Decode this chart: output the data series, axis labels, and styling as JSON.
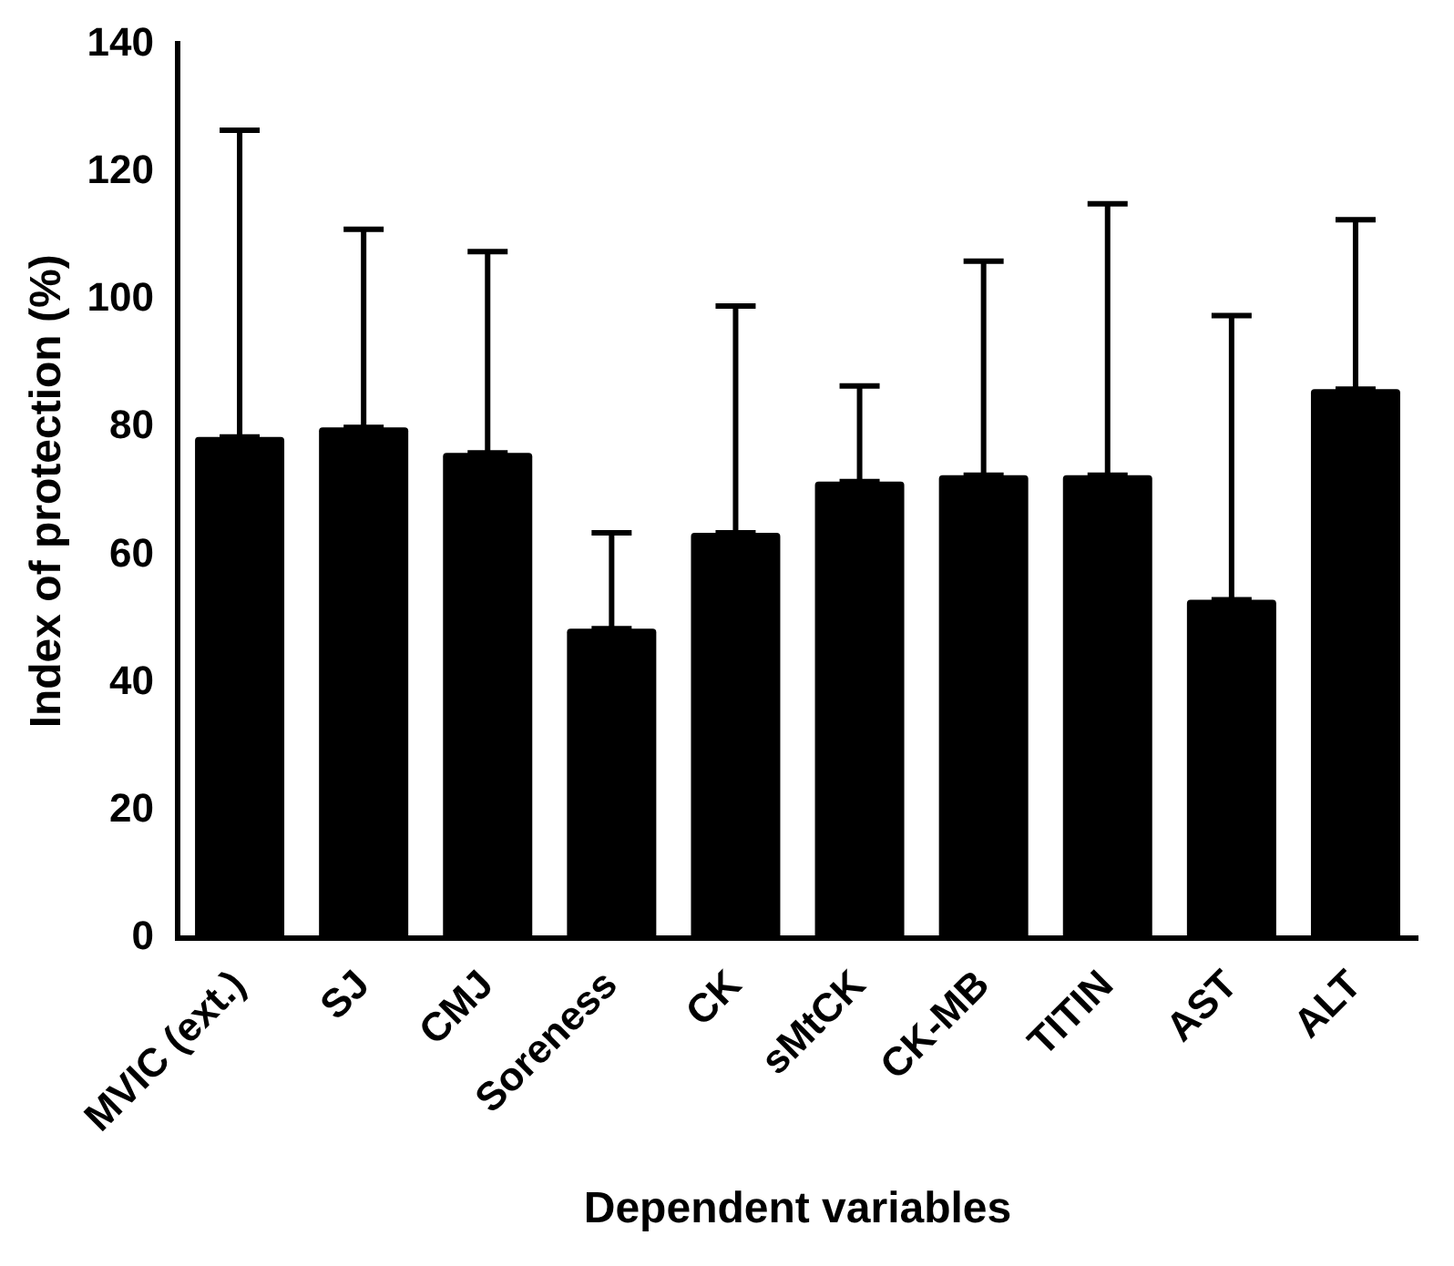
{
  "chart_data": {
    "type": "bar",
    "xlabel": "Dependent variables",
    "ylabel": "Index of protection (%)",
    "categories": [
      "MVIC (ext.)",
      "SJ",
      "CMJ",
      "Soreness",
      "CK",
      "sMtCK",
      "CK-MB",
      "TITIN",
      "AST",
      "ALT"
    ],
    "values": [
      78.5,
      80,
      76,
      48.5,
      63.5,
      71.5,
      72.5,
      72.5,
      53,
      86
    ],
    "errors": [
      [
        78.5,
        126.5
      ],
      [
        80,
        111
      ],
      [
        76,
        107.5
      ],
      [
        48.5,
        63.5
      ],
      [
        63.5,
        99
      ],
      [
        71.5,
        86.5
      ],
      [
        72.5,
        106
      ],
      [
        72.5,
        115
      ],
      [
        53,
        97.5
      ],
      [
        86,
        112.5
      ]
    ],
    "color": "#000000",
    "ylim": [
      0,
      140
    ],
    "yticks": [
      0,
      20,
      40,
      60,
      80,
      100,
      120,
      140
    ],
    "grid": false,
    "legend": false
  }
}
